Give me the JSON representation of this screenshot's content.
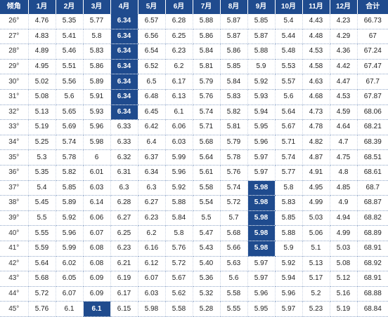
{
  "header": [
    "倾角",
    "1月",
    "2月",
    "3月",
    "4月",
    "5月",
    "6月",
    "7月",
    "8月",
    "9月",
    "10月",
    "11月",
    "12月",
    "合计"
  ],
  "rows": [
    [
      "26°",
      "4.76",
      "5.35",
      "5.77",
      "6.34",
      "6.57",
      "6.28",
      "5.88",
      "5.87",
      "5.85",
      "5.4",
      "4.43",
      "4.23",
      "66.73"
    ],
    [
      "27°",
      "4.83",
      "5.41",
      "5.8",
      "6.34",
      "6.56",
      "6.25",
      "5.86",
      "5.87",
      "5.87",
      "5.44",
      "4.48",
      "4.29",
      "67"
    ],
    [
      "28°",
      "4.89",
      "5.46",
      "5.83",
      "6.34",
      "6.54",
      "6.23",
      "5.84",
      "5.86",
      "5.88",
      "5.48",
      "4.53",
      "4.36",
      "67.24"
    ],
    [
      "29°",
      "4.95",
      "5.51",
      "5.86",
      "6.34",
      "6.52",
      "6.2",
      "5.81",
      "5.85",
      "5.9",
      "5.53",
      "4.58",
      "4.42",
      "67.47"
    ],
    [
      "30°",
      "5.02",
      "5.56",
      "5.89",
      "6.34",
      "6.5",
      "6.17",
      "5.79",
      "5.84",
      "5.92",
      "5.57",
      "4.63",
      "4.47",
      "67.7"
    ],
    [
      "31°",
      "5.08",
      "5.6",
      "5.91",
      "6.34",
      "6.48",
      "6.13",
      "5.76",
      "5.83",
      "5.93",
      "5.6",
      "4.68",
      "4.53",
      "67.87"
    ],
    [
      "32°",
      "5.13",
      "5.65",
      "5.93",
      "6.34",
      "6.45",
      "6.1",
      "5.74",
      "5.82",
      "5.94",
      "5.64",
      "4.73",
      "4.59",
      "68.06"
    ],
    [
      "33°",
      "5.19",
      "5.69",
      "5.96",
      "6.33",
      "6.42",
      "6.06",
      "5.71",
      "5.81",
      "5.95",
      "5.67",
      "4.78",
      "4.64",
      "68.21"
    ],
    [
      "34°",
      "5.25",
      "5.74",
      "5.98",
      "6.33",
      "6.4",
      "6.03",
      "5.68",
      "5.79",
      "5.96",
      "5.71",
      "4.82",
      "4.7",
      "68.39"
    ],
    [
      "35°",
      "5.3",
      "5.78",
      "6",
      "6.32",
      "6.37",
      "5.99",
      "5.64",
      "5.78",
      "5.97",
      "5.74",
      "4.87",
      "4.75",
      "68.51"
    ],
    [
      "36°",
      "5.35",
      "5.82",
      "6.01",
      "6.31",
      "6.34",
      "5.96",
      "5.61",
      "5.76",
      "5.97",
      "5.77",
      "4.91",
      "4.8",
      "68.61"
    ],
    [
      "37°",
      "5.4",
      "5.85",
      "6.03",
      "6.3",
      "6.3",
      "5.92",
      "5.58",
      "5.74",
      "5.98",
      "5.8",
      "4.95",
      "4.85",
      "68.7"
    ],
    [
      "38°",
      "5.45",
      "5.89",
      "6.14",
      "6.28",
      "6.27",
      "5.88",
      "5.54",
      "5.72",
      "5.98",
      "5.83",
      "4.99",
      "4.9",
      "68.87"
    ],
    [
      "39°",
      "5.5",
      "5.92",
      "6.06",
      "6.27",
      "6.23",
      "5.84",
      "5.5",
      "5.7",
      "5.98",
      "5.85",
      "5.03",
      "4.94",
      "68.82"
    ],
    [
      "40°",
      "5.55",
      "5.96",
      "6.07",
      "6.25",
      "6.2",
      "5.8",
      "5.47",
      "5.68",
      "5.98",
      "5.88",
      "5.06",
      "4.99",
      "68.89"
    ],
    [
      "41°",
      "5.59",
      "5.99",
      "6.08",
      "6.23",
      "6.16",
      "5.76",
      "5.43",
      "5.66",
      "5.98",
      "5.9",
      "5.1",
      "5.03",
      "68.91"
    ],
    [
      "42°",
      "5.64",
      "6.02",
      "6.08",
      "6.21",
      "6.12",
      "5.72",
      "5.40",
      "5.63",
      "5.97",
      "5.92",
      "5.13",
      "5.08",
      "68.92"
    ],
    [
      "43°",
      "5.68",
      "6.05",
      "6.09",
      "6.19",
      "6.07",
      "5.67",
      "5.36",
      "5.6",
      "5.97",
      "5.94",
      "5.17",
      "5.12",
      "68.91"
    ],
    [
      "44°",
      "5.72",
      "6.07",
      "6.09",
      "6.17",
      "6.03",
      "5.62",
      "5.32",
      "5.58",
      "5.96",
      "5.96",
      "5.2",
      "5.16",
      "68.88"
    ],
    [
      "45°",
      "5.76",
      "6.1",
      "6.1",
      "6.15",
      "5.98",
      "5.58",
      "5.28",
      "5.55",
      "5.95",
      "5.97",
      "5.23",
      "5.19",
      "68.84"
    ]
  ],
  "highlights": [
    {
      "row": 0,
      "col": 4
    },
    {
      "row": 1,
      "col": 4
    },
    {
      "row": 2,
      "col": 4
    },
    {
      "row": 3,
      "col": 4
    },
    {
      "row": 4,
      "col": 4
    },
    {
      "row": 5,
      "col": 4
    },
    {
      "row": 6,
      "col": 4
    },
    {
      "row": 11,
      "col": 9
    },
    {
      "row": 12,
      "col": 9
    },
    {
      "row": 13,
      "col": 9
    },
    {
      "row": 14,
      "col": 9
    },
    {
      "row": 15,
      "col": 9
    },
    {
      "row": 19,
      "col": 3
    }
  ],
  "colors": {
    "header_bg": "#1f4b8e",
    "highlight_bg": "#1f4b8e",
    "text": "#222222"
  }
}
